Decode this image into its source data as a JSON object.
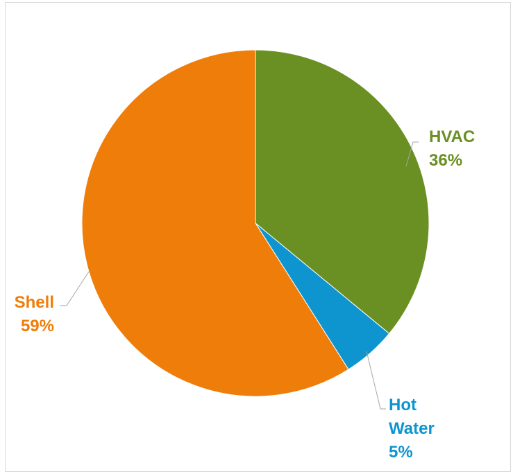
{
  "chart_data": {
    "type": "pie",
    "title": "",
    "start_angle_deg": 0,
    "direction": "clockwise",
    "slices": [
      {
        "label": "HVAC",
        "value": 36,
        "value_label": "36%",
        "color": "#6a8f22"
      },
      {
        "label": "Hot Water",
        "label_lines": [
          "Hot",
          "Water"
        ],
        "value": 5,
        "value_label": "5%",
        "color": "#0e94cf"
      },
      {
        "label": "Shell",
        "value": 59,
        "value_label": "59%",
        "color": "#ee7d0a"
      }
    ],
    "legend": "none",
    "data_labels": "outside-with-leader-lines"
  }
}
